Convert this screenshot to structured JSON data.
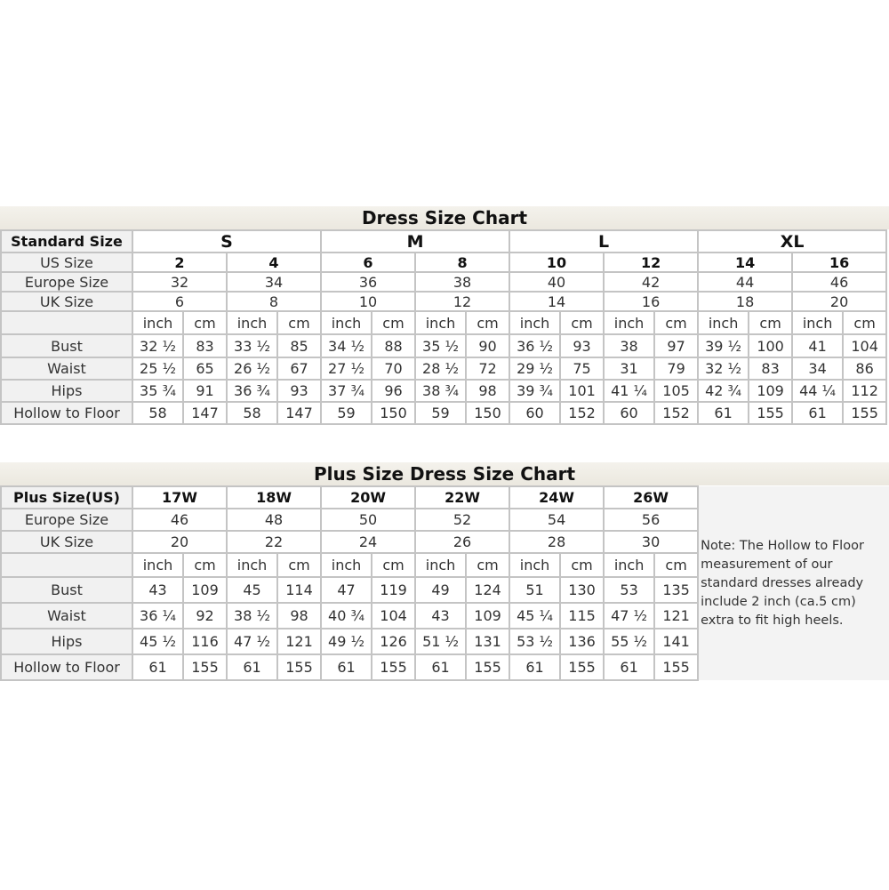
{
  "standard": {
    "title": "Dress Size Chart",
    "header_label": "Standard Size",
    "groups": [
      "S",
      "M",
      "L",
      "XL"
    ],
    "rows": [
      {
        "label": "US Size",
        "values": [
          "2",
          "4",
          "6",
          "8",
          "10",
          "12",
          "14",
          "16"
        ]
      },
      {
        "label": "Europe Size",
        "values": [
          "32",
          "34",
          "36",
          "38",
          "40",
          "42",
          "44",
          "46"
        ]
      },
      {
        "label": "UK Size",
        "values": [
          "6",
          "8",
          "10",
          "12",
          "14",
          "16",
          "18",
          "20"
        ]
      }
    ],
    "units": [
      "inch",
      "cm"
    ],
    "measurements": [
      {
        "label": "Bust",
        "values": [
          "32 ½",
          "83",
          "33 ½",
          "85",
          "34 ½",
          "88",
          "35 ½",
          "90",
          "36 ½",
          "93",
          "38",
          "97",
          "39 ½",
          "100",
          "41",
          "104"
        ]
      },
      {
        "label": "Waist",
        "values": [
          "25 ½",
          "65",
          "26 ½",
          "67",
          "27 ½",
          "70",
          "28 ½",
          "72",
          "29 ½",
          "75",
          "31",
          "79",
          "32 ½",
          "83",
          "34",
          "86"
        ]
      },
      {
        "label": "Hips",
        "values": [
          "35 ¾",
          "91",
          "36 ¾",
          "93",
          "37 ¾",
          "96",
          "38 ¾",
          "98",
          "39 ¾",
          "101",
          "41 ¼",
          "105",
          "42 ¾",
          "109",
          "44 ¼",
          "112"
        ]
      },
      {
        "label": "Hollow to Floor",
        "values": [
          "58",
          "147",
          "58",
          "147",
          "59",
          "150",
          "59",
          "150",
          "60",
          "152",
          "60",
          "152",
          "61",
          "155",
          "61",
          "155"
        ]
      }
    ]
  },
  "plus": {
    "title": "Plus Size Dress Size Chart",
    "header_label": "Plus Size(US)",
    "sizes": [
      "17W",
      "18W",
      "20W",
      "22W",
      "24W",
      "26W"
    ],
    "rows": [
      {
        "label": "Europe Size",
        "values": [
          "46",
          "48",
          "50",
          "52",
          "54",
          "56"
        ]
      },
      {
        "label": "UK Size",
        "values": [
          "20",
          "22",
          "24",
          "26",
          "28",
          "30"
        ]
      }
    ],
    "units": [
      "inch",
      "cm"
    ],
    "measurements": [
      {
        "label": "Bust",
        "values": [
          "43",
          "109",
          "45",
          "114",
          "47",
          "119",
          "49",
          "124",
          "51",
          "130",
          "53",
          "135"
        ]
      },
      {
        "label": "Waist",
        "values": [
          "36 ¼",
          "92",
          "38 ½",
          "98",
          "40 ¾",
          "104",
          "43",
          "109",
          "45 ¼",
          "115",
          "47 ½",
          "121"
        ]
      },
      {
        "label": "Hips",
        "values": [
          "45 ½",
          "116",
          "47 ½",
          "121",
          "49 ½",
          "126",
          "51 ½",
          "131",
          "53 ½",
          "136",
          "55 ½",
          "141"
        ]
      },
      {
        "label": "Hollow to Floor",
        "values": [
          "61",
          "155",
          "61",
          "155",
          "61",
          "155",
          "61",
          "155",
          "61",
          "155",
          "61",
          "155"
        ]
      }
    ],
    "note": "Note: The Hollow to Floor measurement of our standard dresses already include 2 inch (ca.5 cm) extra to fit high heels."
  }
}
